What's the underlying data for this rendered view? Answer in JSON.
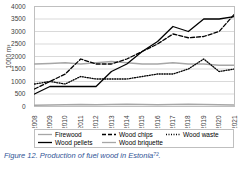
{
  "chart_data": {
    "type": "line",
    "caption": "Figure 12. Production of fuel wood in Estonia⁷².",
    "y_label": "1000 m³",
    "x": [
      2008,
      2009,
      2010,
      2011,
      2012,
      2013,
      2014,
      2015,
      2016,
      2017,
      2018,
      2019,
      2020,
      2021
    ],
    "xlim": [
      2008,
      2021
    ],
    "xticks": [
      2008,
      2009,
      2010,
      2011,
      2012,
      2013,
      2014,
      2015,
      2016,
      2017,
      2018,
      2019,
      2020,
      2021
    ],
    "ylim": [
      0,
      4000
    ],
    "yticks": [
      0,
      500,
      1000,
      1500,
      2000,
      2500,
      3000,
      3500,
      4000
    ],
    "grid": true,
    "legend": "bottom",
    "series": [
      {
        "name": "Firewood",
        "color": "#a6a6a6",
        "line_style": "solid",
        "values": [
          1700,
          1720,
          1750,
          1700,
          1750,
          1800,
          1750,
          1700,
          1700,
          1750,
          1700,
          1700,
          1650,
          1650
        ]
      },
      {
        "name": "Wood chips",
        "color": "#000000",
        "line_style": "dashed",
        "values": [
          700,
          1000,
          1300,
          1900,
          1700,
          1700,
          1900,
          2200,
          2500,
          2900,
          2750,
          2800,
          3000,
          3700
        ]
      },
      {
        "name": "Wood waste",
        "color": "#000000",
        "line_style": "dotted",
        "values": [
          900,
          1000,
          900,
          1200,
          1100,
          1100,
          1100,
          1200,
          1300,
          1300,
          1500,
          1900,
          1400,
          1500
        ]
      },
      {
        "name": "Wood pellets",
        "color": "#000000",
        "line_style": "solid",
        "values": [
          500,
          800,
          800,
          800,
          800,
          1400,
          1700,
          2200,
          2600,
          3200,
          3000,
          3500,
          3500,
          3600
        ]
      },
      {
        "name": "Wood briquette",
        "color": "#a6a6a6",
        "line_style": "solid",
        "values": [
          50,
          60,
          70,
          80,
          70,
          80,
          90,
          80,
          70,
          80,
          90,
          80,
          70,
          60
        ]
      }
    ]
  }
}
